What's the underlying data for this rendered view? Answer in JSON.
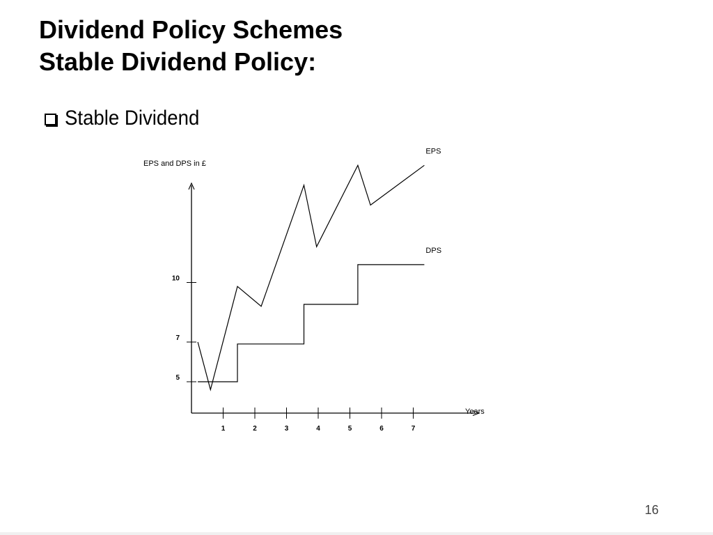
{
  "slide": {
    "title_line1": "Dividend Policy Schemes",
    "title_line2": "Stable Dividend Policy:",
    "bullet": "Stable Dividend",
    "page_number": "16"
  },
  "chart_data": {
    "type": "line",
    "title": "",
    "xlabel": "Years",
    "ylabel": "EPS and DPS in £",
    "x_ticks": [
      1,
      2,
      3,
      4,
      5,
      6,
      7
    ],
    "y_ticks": [
      5,
      7,
      10
    ],
    "grid": false,
    "series": [
      {
        "name": "EPS",
        "points": [
          [
            0.2,
            7.0
          ],
          [
            0.6,
            4.6
          ],
          [
            1.45,
            9.8
          ],
          [
            2.2,
            8.8
          ],
          [
            3.55,
            14.9
          ],
          [
            3.95,
            11.8
          ],
          [
            5.25,
            15.9
          ],
          [
            5.65,
            13.9
          ],
          [
            7.35,
            15.9
          ]
        ]
      },
      {
        "name": "DPS",
        "points": [
          [
            0.2,
            5.0
          ],
          [
            1.45,
            5.0
          ],
          [
            1.45,
            6.9
          ],
          [
            3.55,
            6.9
          ],
          [
            3.55,
            8.9
          ],
          [
            5.25,
            8.9
          ],
          [
            5.25,
            10.9
          ],
          [
            7.35,
            10.9
          ]
        ]
      }
    ]
  }
}
